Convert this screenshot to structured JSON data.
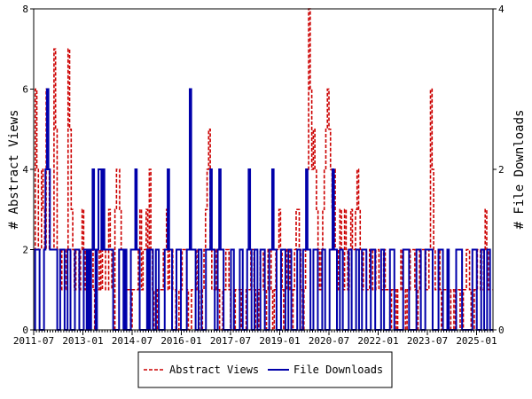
{
  "chart_data": {
    "type": "line",
    "ylabel": "# Abstract Views",
    "y2label": "# File Downloads",
    "ylim": [
      0,
      8
    ],
    "y2lim": [
      0,
      4
    ],
    "yticks": [
      "0",
      "2",
      "4",
      "6",
      "8"
    ],
    "y2ticks": [
      "0",
      "2",
      "4"
    ],
    "x_start": "2011-07",
    "x_end": "2025-07",
    "x_ticks": [
      "2011-07",
      "2013-01",
      "2014-07",
      "2016-01",
      "2017-07",
      "2019-01",
      "2020-07",
      "2022-01",
      "2023-07",
      "2025-01"
    ],
    "legend_position": "bottom-center",
    "series": [
      {
        "name": "Abstract Views",
        "axis": "left",
        "color": "#cc0000",
        "style": "dashed",
        "values": [
          2,
          6,
          4,
          2,
          2,
          4,
          3,
          2,
          6,
          4,
          2,
          2,
          2,
          7,
          5,
          2,
          2,
          1,
          2,
          2,
          1,
          2,
          7,
          5,
          3,
          2,
          1,
          2,
          2,
          1,
          2,
          3,
          2,
          1,
          2,
          1,
          2,
          2,
          1,
          0,
          1,
          1,
          2,
          1,
          2,
          2,
          1,
          1,
          3,
          2,
          1,
          0,
          3,
          4,
          4,
          3,
          2,
          2,
          2,
          1,
          1,
          1,
          0,
          1,
          1,
          1,
          1,
          2,
          3,
          1,
          2,
          2,
          3,
          2,
          4,
          2,
          1,
          0,
          0,
          1,
          1,
          1,
          1,
          2,
          2,
          3,
          1,
          2,
          2,
          1,
          1,
          0,
          0,
          1,
          1,
          2,
          2,
          2,
          1,
          0,
          0,
          1,
          1,
          1,
          2,
          1,
          0,
          0,
          1,
          2,
          3,
          4,
          5,
          2,
          1,
          1,
          2,
          1,
          1,
          0,
          0,
          1,
          1,
          2,
          2,
          1,
          0,
          0,
          0,
          1,
          1,
          1,
          1,
          0,
          0,
          0,
          1,
          1,
          1,
          2,
          2,
          1,
          0,
          0,
          1,
          2,
          2,
          1,
          0,
          1,
          2,
          2,
          1,
          0,
          1,
          2,
          2,
          3,
          2,
          1,
          0,
          1,
          2,
          2,
          1,
          0,
          1,
          2,
          3,
          3,
          2,
          1,
          0,
          1,
          2,
          4,
          8,
          6,
          4,
          5,
          4,
          3,
          2,
          1,
          2,
          3,
          4,
          5,
          6,
          5,
          4,
          3,
          4,
          2,
          1,
          2,
          3,
          2,
          1,
          3,
          2,
          1,
          2,
          3,
          2,
          2,
          3,
          4,
          3,
          2,
          1,
          2,
          2,
          1,
          1,
          2,
          2,
          1,
          1,
          2,
          2,
          1,
          1,
          1,
          2,
          1,
          1,
          1,
          0,
          1,
          1,
          1,
          0,
          1,
          1,
          2,
          1,
          1,
          0,
          1,
          1,
          2,
          2,
          2,
          1,
          0,
          1,
          2,
          2,
          2,
          2,
          1,
          1,
          2,
          6,
          4,
          2,
          1,
          1,
          2,
          1,
          0,
          1,
          1,
          1,
          0,
          0,
          1,
          1,
          0,
          1,
          1,
          1,
          0,
          0,
          1,
          1,
          2,
          2,
          1,
          0,
          0,
          1,
          1,
          2,
          2,
          1,
          1,
          2,
          3,
          2,
          1,
          1,
          1
        ]
      },
      {
        "name": "File Downloads",
        "axis": "right",
        "color": "#0000aa",
        "style": "solid",
        "values": [
          0,
          1,
          1,
          1,
          0,
          0,
          0,
          1,
          2,
          3,
          2,
          1,
          1,
          1,
          1,
          1,
          0,
          0,
          1,
          1,
          1,
          0,
          0,
          1,
          1,
          0,
          0,
          0,
          1,
          1,
          1,
          0,
          0,
          0,
          1,
          1,
          0,
          1,
          0,
          1,
          2,
          1,
          0,
          1,
          2,
          2,
          1,
          2,
          1,
          1,
          1,
          1,
          1,
          1,
          0,
          0,
          0,
          0,
          1,
          1,
          1,
          0,
          1,
          0,
          0,
          0,
          1,
          1,
          1,
          2,
          1,
          1,
          0,
          0,
          0,
          0,
          0,
          1,
          0,
          1,
          1,
          0,
          0,
          1,
          1,
          0,
          0,
          0,
          0,
          1,
          1,
          2,
          1,
          1,
          0,
          0,
          0,
          1,
          1,
          1,
          0,
          0,
          0,
          0,
          1,
          1,
          3,
          1,
          1,
          1,
          0,
          0,
          1,
          1,
          0,
          0,
          0,
          1,
          1,
          1,
          2,
          1,
          1,
          0,
          0,
          1,
          2,
          1,
          1,
          0,
          0,
          0,
          0,
          0,
          1,
          1,
          0,
          0,
          0,
          0,
          1,
          1,
          0,
          0,
          0,
          1,
          2,
          1,
          0,
          0,
          1,
          1,
          0,
          0,
          1,
          1,
          1,
          0,
          0,
          0,
          1,
          1,
          2,
          1,
          1,
          0,
          0,
          0,
          1,
          1,
          1,
          0,
          0,
          1,
          1,
          0,
          0,
          0,
          0,
          1,
          1,
          0,
          0,
          1,
          1,
          2,
          1,
          1,
          0,
          0,
          1,
          1,
          1,
          0,
          0,
          0,
          1,
          1,
          0,
          0,
          0,
          1,
          1,
          2,
          1,
          1,
          0,
          0,
          1,
          1,
          0,
          0,
          0,
          0,
          1,
          1,
          0,
          0,
          0,
          1,
          1,
          0,
          0,
          1,
          1,
          1,
          0,
          0,
          0,
          1,
          1,
          1,
          0,
          0,
          0,
          0,
          1,
          1,
          0,
          0,
          0,
          0,
          1,
          1,
          1,
          0,
          0,
          0,
          0,
          0,
          0,
          1,
          1,
          1,
          1,
          0,
          0,
          0,
          0,
          0,
          1,
          1,
          1,
          0,
          0,
          0,
          1,
          1,
          1,
          1,
          1,
          0,
          0,
          0,
          0,
          1,
          1,
          1,
          0,
          0,
          0,
          1,
          0,
          0,
          0,
          0,
          0,
          1,
          1,
          1,
          1,
          0,
          0,
          0,
          0,
          0,
          0,
          0,
          1,
          1,
          1,
          0,
          0,
          0,
          1,
          1,
          0,
          0,
          1,
          1,
          0,
          0
        ]
      }
    ]
  }
}
